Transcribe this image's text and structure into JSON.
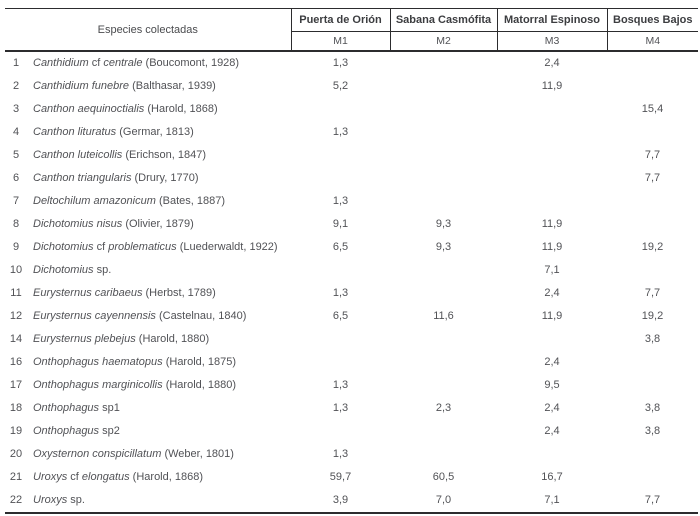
{
  "table": {
    "header": {
      "species_label": "Especies colectadas",
      "sites": [
        {
          "name": "Puerta de Orión",
          "code": "M1"
        },
        {
          "name": "Sabana Casmófita",
          "code": "M2"
        },
        {
          "name": "Matorral Espinoso",
          "code": "M3"
        },
        {
          "name": "Bosques Bajos",
          "code": "M4"
        }
      ]
    },
    "rows": [
      {
        "num": "1",
        "name": [
          {
            "t": "Canthidium ",
            "i": true
          },
          {
            "t": "cf ",
            "i": false
          },
          {
            "t": "centrale",
            "i": true
          },
          {
            "t": " (Boucomont, 1928)",
            "i": false
          }
        ],
        "values": [
          "1,3",
          "",
          "2,4",
          ""
        ]
      },
      {
        "num": "2",
        "name": [
          {
            "t": "Canthidium funebre",
            "i": true
          },
          {
            "t": " (Balthasar, 1939)",
            "i": false
          }
        ],
        "values": [
          "5,2",
          "",
          "11,9",
          ""
        ]
      },
      {
        "num": "3",
        "name": [
          {
            "t": "Canthon aequinoctialis",
            "i": true
          },
          {
            "t": " (Harold, 1868)",
            "i": false
          }
        ],
        "values": [
          "",
          "",
          "",
          "15,4"
        ]
      },
      {
        "num": "4",
        "name": [
          {
            "t": "Canthon lituratus",
            "i": true
          },
          {
            "t": " (Germar, 1813)",
            "i": false
          }
        ],
        "values": [
          "1,3",
          "",
          "",
          ""
        ]
      },
      {
        "num": "5",
        "name": [
          {
            "t": "Canthon luteicollis",
            "i": true
          },
          {
            "t": " (Erichson, 1847)",
            "i": false
          }
        ],
        "values": [
          "",
          "",
          "",
          "7,7"
        ]
      },
      {
        "num": "6",
        "name": [
          {
            "t": "Canthon triangularis",
            "i": true
          },
          {
            "t": " (Drury, 1770)",
            "i": false
          }
        ],
        "values": [
          "",
          "",
          "",
          "7,7"
        ]
      },
      {
        "num": "7",
        "name": [
          {
            "t": "Deltochilum amazonicum",
            "i": true
          },
          {
            "t": " (Bates, 1887)",
            "i": false
          }
        ],
        "values": [
          "1,3",
          "",
          "",
          ""
        ]
      },
      {
        "num": "8",
        "name": [
          {
            "t": "Dichotomius nisus",
            "i": true
          },
          {
            "t": " (Olivier, 1879)",
            "i": false
          }
        ],
        "values": [
          "9,1",
          "9,3",
          "11,9",
          ""
        ]
      },
      {
        "num": "9",
        "name": [
          {
            "t": "Dichotomius ",
            "i": true
          },
          {
            "t": "cf ",
            "i": false
          },
          {
            "t": "problematicus",
            "i": true
          },
          {
            "t": " (Luederwaldt, 1922)",
            "i": false
          }
        ],
        "values": [
          "6,5",
          "9,3",
          "11,9",
          "19,2"
        ]
      },
      {
        "num": "10",
        "name": [
          {
            "t": "Dichotomius",
            "i": true
          },
          {
            "t": " sp.",
            "i": false
          }
        ],
        "values": [
          "",
          "",
          "7,1",
          ""
        ]
      },
      {
        "num": "11",
        "name": [
          {
            "t": "Eurysternus caribaeus",
            "i": true
          },
          {
            "t": " (Herbst, 1789)",
            "i": false
          }
        ],
        "values": [
          "1,3",
          "",
          "2,4",
          "7,7"
        ]
      },
      {
        "num": "12",
        "name": [
          {
            "t": "Eurysternus cayennensis",
            "i": true
          },
          {
            "t": " (Castelnau, 1840)",
            "i": false
          }
        ],
        "values": [
          "6,5",
          "11,6",
          "11,9",
          "19,2"
        ]
      },
      {
        "num": "14",
        "name": [
          {
            "t": "Eurysternus plebejus",
            "i": true
          },
          {
            "t": " (Harold, 1880)",
            "i": false
          }
        ],
        "values": [
          "",
          "",
          "",
          "3,8"
        ]
      },
      {
        "num": "16",
        "name": [
          {
            "t": "Onthophagus haematopus",
            "i": true
          },
          {
            "t": " (Harold, 1875)",
            "i": false
          }
        ],
        "values": [
          "",
          "",
          "2,4",
          ""
        ]
      },
      {
        "num": "17",
        "name": [
          {
            "t": "Onthophagus marginicollis",
            "i": true
          },
          {
            "t": " (Harold, 1880)",
            "i": false
          }
        ],
        "values": [
          "1,3",
          "",
          "9,5",
          ""
        ]
      },
      {
        "num": "18",
        "name": [
          {
            "t": "Onthophagus",
            "i": true
          },
          {
            "t": " sp1",
            "i": false
          }
        ],
        "values": [
          "1,3",
          "2,3",
          "2,4",
          "3,8"
        ]
      },
      {
        "num": "19",
        "name": [
          {
            "t": "Onthophagus",
            "i": true
          },
          {
            "t": " sp2",
            "i": false
          }
        ],
        "values": [
          "",
          "",
          "2,4",
          "3,8"
        ]
      },
      {
        "num": "20",
        "name": [
          {
            "t": "Oxysternon conspicillatum",
            "i": true
          },
          {
            "t": " (Weber, 1801)",
            "i": false
          }
        ],
        "values": [
          "1,3",
          "",
          "",
          ""
        ]
      },
      {
        "num": "21",
        "name": [
          {
            "t": "Uroxys ",
            "i": true
          },
          {
            "t": "cf ",
            "i": false
          },
          {
            "t": "elongatus",
            "i": true
          },
          {
            "t": " (Harold, 1868)",
            "i": false
          }
        ],
        "values": [
          "59,7",
          "60,5",
          "16,7",
          ""
        ]
      },
      {
        "num": "22",
        "name": [
          {
            "t": "Uroxys",
            "i": true
          },
          {
            "t": " sp.",
            "i": false
          }
        ],
        "values": [
          "3,9",
          "7,0",
          "7,1",
          "7,7"
        ]
      }
    ]
  }
}
